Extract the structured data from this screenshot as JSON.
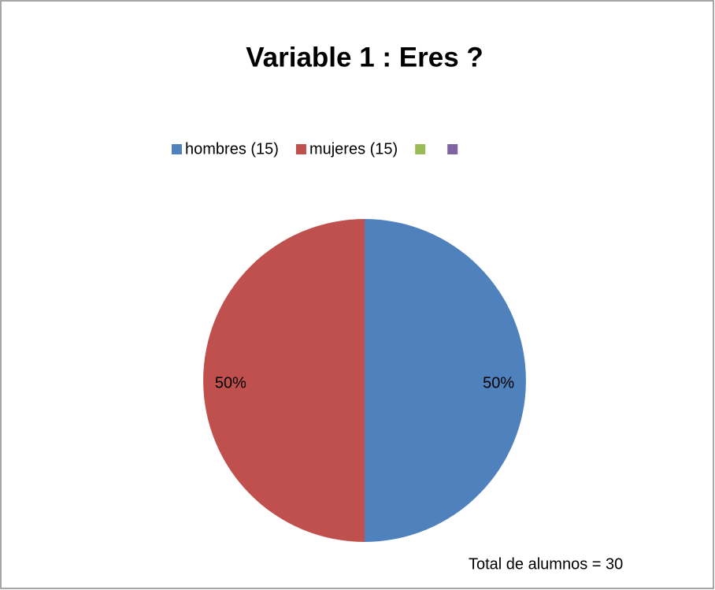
{
  "chart_data": {
    "type": "pie",
    "title": "Variable 1 :  Eres ?",
    "categories": [
      "hombres (15)",
      "mujeres (15)",
      null,
      null
    ],
    "values": [
      50,
      50,
      0,
      0
    ],
    "value_labels": [
      "50%",
      "50%",
      null,
      null
    ],
    "colors": [
      "#4f81bd",
      "#c0504d",
      "#9bbb59",
      "#8064a2"
    ],
    "legend": "top",
    "annotation": "Total de alumnos = 30"
  }
}
